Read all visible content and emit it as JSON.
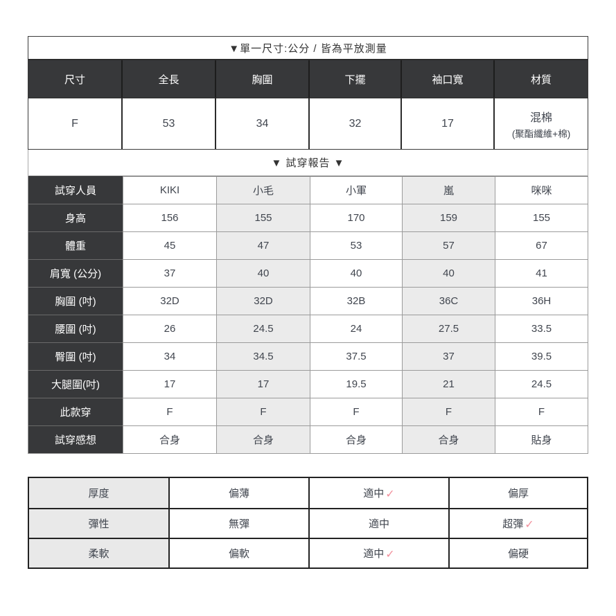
{
  "size_table": {
    "title": "▼單一尺寸:公分 / 皆為平放測量",
    "columns": [
      "尺寸",
      "全長",
      "胸圍",
      "下擺",
      "袖口寬",
      "材質"
    ],
    "values": [
      "F",
      "53",
      "34",
      "32",
      "17"
    ],
    "material": {
      "line1": "混棉",
      "line2": "(聚酯纖維+棉)"
    }
  },
  "fit_report": {
    "title": "▼ 試穿報告 ▼",
    "rows": [
      {
        "label": "試穿人員",
        "values": [
          "KIKI",
          "小毛",
          "小軍",
          "嵐",
          "咪咪"
        ]
      },
      {
        "label": "身高",
        "values": [
          "156",
          "155",
          "170",
          "159",
          "155"
        ]
      },
      {
        "label": "體重",
        "values": [
          "45",
          "47",
          "53",
          "57",
          "67"
        ]
      },
      {
        "label": "肩寬 (公分)",
        "values": [
          "37",
          "40",
          "40",
          "40",
          "41"
        ]
      },
      {
        "label": "胸圍 (吋)",
        "values": [
          "32D",
          "32D",
          "32B",
          "36C",
          "36H"
        ]
      },
      {
        "label": "腰圍 (吋)",
        "values": [
          "26",
          "24.5",
          "24",
          "27.5",
          "33.5"
        ]
      },
      {
        "label": "臀圍 (吋)",
        "values": [
          "34",
          "34.5",
          "37.5",
          "37",
          "39.5"
        ]
      },
      {
        "label": "大腿圍(吋)",
        "values": [
          "17",
          "17",
          "19.5",
          "21",
          "24.5"
        ]
      },
      {
        "label": "此款穿",
        "values": [
          "F",
          "F",
          "F",
          "F",
          "F"
        ]
      },
      {
        "label": "試穿感想",
        "values": [
          "合身",
          "合身",
          "合身",
          "合身",
          "貼身"
        ]
      }
    ]
  },
  "attributes_table": {
    "check_mark": "✓",
    "rows": [
      {
        "label": "厚度",
        "options": [
          "偏薄",
          "適中",
          "偏厚"
        ],
        "checked_index": 1
      },
      {
        "label": "彈性",
        "options": [
          "無彈",
          "適中",
          "超彈"
        ],
        "checked_index": 2
      },
      {
        "label": "柔軟",
        "options": [
          "偏軟",
          "適中",
          "偏硬"
        ],
        "checked_index": 1
      }
    ]
  },
  "colors": {
    "header_bg": "#37383a",
    "zebra_bg": "#ebebeb",
    "label_bg": "#e9e9e9",
    "check_pink": "#f2919d",
    "border_dark": "#2b2b2b",
    "border_light": "#9b9b9b"
  }
}
